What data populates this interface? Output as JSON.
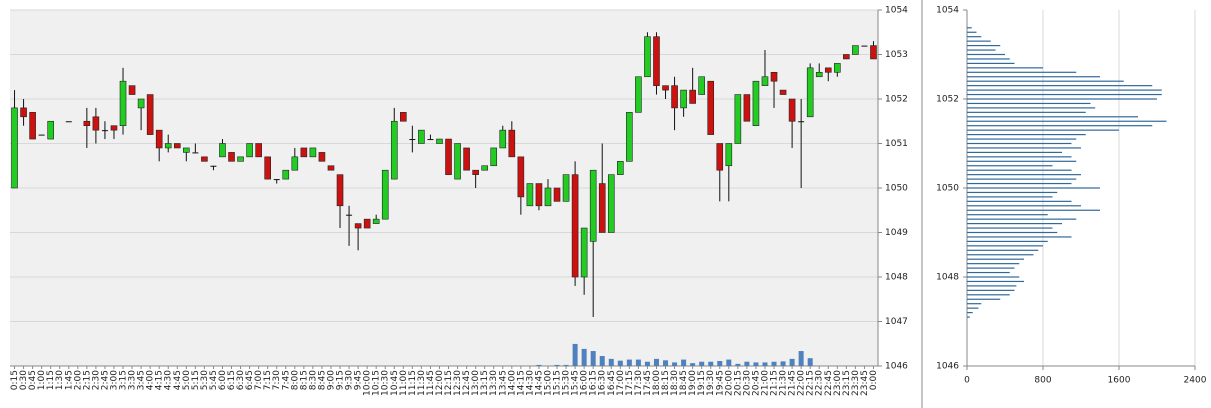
{
  "chart_data": [
    {
      "type": "candlestick",
      "categories": [
        "0:15",
        "0:30",
        "0:45",
        "1:00",
        "1:15",
        "1:30",
        "1:45",
        "2:00",
        "2:15",
        "2:30",
        "2:45",
        "3:00",
        "3:15",
        "3:30",
        "3:45",
        "4:00",
        "4:15",
        "4:30",
        "4:45",
        "5:00",
        "5:15",
        "5:30",
        "5:45",
        "6:00",
        "6:15",
        "6:30",
        "6:45",
        "7:00",
        "7:15",
        "7:30",
        "7:45",
        "8:00",
        "8:15",
        "8:30",
        "8:45",
        "9:00",
        "9:15",
        "9:30",
        "9:45",
        "10:00",
        "10:15",
        "10:30",
        "10:45",
        "11:00",
        "11:15",
        "11:30",
        "11:45",
        "12:00",
        "12:15",
        "12:30",
        "12:45",
        "13:00",
        "13:15",
        "13:30",
        "13:45",
        "14:00",
        "14:15",
        "14:30",
        "14:45",
        "15:00",
        "15:15",
        "15:30",
        "15:45",
        "16:00",
        "16:15",
        "16:30",
        "16:45",
        "17:00",
        "17:15",
        "17:30",
        "17:45",
        "18:00",
        "18:15",
        "18:30",
        "18:45",
        "19:00",
        "19:15",
        "19:30",
        "19:45",
        "20:00",
        "20:15",
        "20:30",
        "20:45",
        "21:00",
        "21:15",
        "21:30",
        "21:45",
        "22:00",
        "22:15",
        "22:30",
        "22:45",
        "23:00",
        "23:15",
        "23:30",
        "23:45",
        "0:00"
      ],
      "open": [
        1050,
        1051.8,
        1051.7,
        1051.2,
        1051.1,
        null,
        1051.5,
        null,
        1051.5,
        1051.6,
        1051.3,
        1051.4,
        1051.4,
        1052.3,
        1051.8,
        1052.1,
        1051.3,
        1050.9,
        1051,
        1050.8,
        1050.8,
        1050.7,
        1050.5,
        1050.7,
        1050.8,
        1050.6,
        1050.7,
        1051,
        1050.7,
        1050.2,
        1050.2,
        1050.4,
        1050.9,
        1050.7,
        1050.8,
        1050.5,
        1050.3,
        1049.4,
        1049.2,
        1049.3,
        1049.2,
        1049.3,
        1050.2,
        1051.7,
        1051.1,
        1051,
        1051.1,
        1051,
        1051.1,
        1050.2,
        1050.9,
        1050.4,
        1050.4,
        1050.5,
        1050.9,
        1051.3,
        1050.7,
        1049.6,
        1050.1,
        1049.6,
        1050,
        1049.7,
        1050.3,
        1048,
        1048.8,
        1050.1,
        1049,
        1050.3,
        1050.6,
        1051.7,
        1052.5,
        1053.4,
        1052.3,
        1052.3,
        1051.8,
        1052.2,
        1052.1,
        1052.4,
        1051,
        1050.5,
        1051,
        1052.1,
        1051.4,
        1052.3,
        1052.6,
        1052.2,
        1052,
        1051.5,
        1051.6,
        1052.5,
        1052.7,
        1052.6,
        1053,
        1053,
        1053.2,
        1053.2
      ],
      "high": [
        1052.2,
        1052,
        1051.7,
        1051.2,
        1051.5,
        null,
        1051.5,
        null,
        1051.8,
        1051.8,
        1051.5,
        1051.4,
        1052.7,
        1052.3,
        1052,
        1052.1,
        1051.3,
        1051.2,
        1051,
        1050.9,
        1051,
        1050.7,
        1050.5,
        1051.1,
        1050.8,
        1050.7,
        1051,
        1051,
        1050.7,
        1050.2,
        1050.4,
        1050.9,
        1050.9,
        1050.9,
        1050.8,
        1050.5,
        1050.3,
        1049.6,
        1049.2,
        1049.3,
        1049.4,
        1050.4,
        1051.8,
        1051.7,
        1051.4,
        1051.3,
        1051.2,
        1051.1,
        1051.1,
        1051,
        1050.9,
        1050.4,
        1050.5,
        1050.9,
        1051.4,
        1051.5,
        1050.7,
        1050.1,
        1050.1,
        1050.2,
        1050,
        1050.3,
        1050.6,
        1049.1,
        1050.4,
        1051,
        1050.3,
        1050.6,
        1051.7,
        1052.5,
        1053.5,
        1053.5,
        1052.3,
        1052.5,
        1052.2,
        1052.7,
        1052.5,
        1052.4,
        1051,
        1051,
        1052.1,
        1052.1,
        1052.4,
        1053.1,
        1052.6,
        1052.2,
        1052,
        1052,
        1052.8,
        1052.8,
        1052.7,
        1052.8,
        1053,
        1053.2,
        1053.2,
        1053.3
      ],
      "low": [
        1050,
        1051.4,
        1051.1,
        1051.2,
        1051.1,
        null,
        1051.5,
        null,
        1050.9,
        1051,
        1051.1,
        1051.1,
        1051.2,
        1052.1,
        1051.3,
        1051.2,
        1050.6,
        1050.8,
        1050.9,
        1050.6,
        1050.8,
        1050.6,
        1050.4,
        1050.7,
        1050.6,
        1050.6,
        1050.7,
        1050.7,
        1050.2,
        1050.1,
        1050.2,
        1050.4,
        1050.7,
        1050.7,
        1050.6,
        1050.4,
        1049.1,
        1048.7,
        1048.6,
        1049.1,
        1049.2,
        1049.3,
        1050.2,
        1051.5,
        1050.8,
        1051,
        1051.1,
        1051,
        1050.3,
        1050.2,
        1050.4,
        1050,
        1050.4,
        1050.5,
        1050.9,
        1050.7,
        1049.4,
        1049.6,
        1049.5,
        1049.6,
        1049.7,
        1049.7,
        1047.8,
        1047.6,
        1047.1,
        1049,
        1049,
        1050.3,
        1050.6,
        1051.7,
        1052.5,
        1052.1,
        1052,
        1051.3,
        1051.6,
        1051.9,
        1052.1,
        1051.2,
        1049.7,
        1049.7,
        1051,
        1051.5,
        1051.4,
        1052.3,
        1051.8,
        1052.1,
        1050.9,
        1050,
        1051.6,
        1052.5,
        1052.4,
        1052.5,
        1052.9,
        1053,
        1053.2,
        1052.9
      ],
      "close": [
        1051.8,
        1051.6,
        1051.1,
        1051.2,
        1051.5,
        null,
        1051.5,
        null,
        1051.4,
        1051.3,
        1051.3,
        1051.3,
        1052.4,
        1052.1,
        1052,
        1051.2,
        1050.9,
        1051,
        1050.9,
        1050.9,
        1050.8,
        1050.6,
        1050.5,
        1051,
        1050.6,
        1050.7,
        1051,
        1050.7,
        1050.2,
        1050.2,
        1050.4,
        1050.7,
        1050.7,
        1050.9,
        1050.6,
        1050.4,
        1049.6,
        1049.4,
        1049.1,
        1049.1,
        1049.3,
        1050.4,
        1051.5,
        1051.5,
        1051.1,
        1051.3,
        1051.1,
        1051.1,
        1050.3,
        1051,
        1050.4,
        1050.3,
        1050.5,
        1050.9,
        1051.3,
        1050.7,
        1049.8,
        1050.1,
        1049.6,
        1050,
        1049.7,
        1050.3,
        1048,
        1049.1,
        1050.4,
        1049,
        1050.3,
        1050.6,
        1051.7,
        1052.5,
        1053.4,
        1052.3,
        1052.2,
        1051.8,
        1052.2,
        1051.9,
        1052.5,
        1051.2,
        1050.4,
        1051,
        1052.1,
        1051.5,
        1052.4,
        1052.5,
        1052.4,
        1052.1,
        1051.5,
        1051.5,
        1052.7,
        1052.6,
        1052.6,
        1052.8,
        1052.9,
        1053.2,
        1053.2,
        1052.9
      ],
      "volume": [
        0,
        0,
        0,
        0,
        0,
        0,
        0,
        0,
        0,
        0,
        0,
        0,
        0,
        0,
        0,
        0,
        0,
        0,
        0,
        0,
        0,
        0,
        0,
        0,
        0,
        0,
        0,
        0,
        0,
        0,
        0,
        0,
        0,
        0,
        0,
        0,
        0,
        0,
        0,
        0,
        0,
        0,
        0,
        0,
        0,
        0,
        0,
        0,
        0,
        0,
        0,
        0,
        0,
        0,
        0,
        0,
        0,
        0,
        0.3,
        0,
        0.3,
        0.3,
        6.2,
        4.8,
        4.2,
        2.8,
        2,
        1.5,
        1.8,
        1.8,
        1.2,
        2,
        1.6,
        1,
        1.8,
        0.8,
        1.2,
        1.2,
        1.4,
        1.8,
        0.6,
        1.2,
        1,
        1,
        1.2,
        1.3,
        2,
        4.2,
        2.2,
        0,
        0,
        0,
        0,
        0,
        0,
        0
      ],
      "ylim": [
        1046,
        1054
      ],
      "yticks": [
        1046,
        1047,
        1048,
        1049,
        1050,
        1051,
        1052,
        1053,
        1054
      ],
      "y2lim": [
        0,
        100
      ],
      "up_color": "#22cc22",
      "down_color": "#cc1111",
      "volume_color": "#4f81bd",
      "grid": true
    },
    {
      "type": "barh",
      "y": [
        1047.1,
        1047.2,
        1047.3,
        1047.4,
        1047.5,
        1047.6,
        1047.7,
        1047.8,
        1047.9,
        1048,
        1048.1,
        1048.2,
        1048.3,
        1048.4,
        1048.5,
        1048.6,
        1048.7,
        1048.8,
        1048.9,
        1049,
        1049.1,
        1049.2,
        1049.3,
        1049.4,
        1049.5,
        1049.6,
        1049.7,
        1049.8,
        1049.9,
        1050,
        1050.1,
        1050.2,
        1050.3,
        1050.4,
        1050.5,
        1050.6,
        1050.7,
        1050.8,
        1050.9,
        1051,
        1051.1,
        1051.2,
        1051.3,
        1051.4,
        1051.5,
        1051.6,
        1051.7,
        1051.8,
        1051.9,
        1052,
        1052.1,
        1052.2,
        1052.3,
        1052.4,
        1052.5,
        1052.6,
        1052.7,
        1052.8,
        1052.9,
        1053,
        1053.1,
        1053.2,
        1053.3,
        1053.4,
        1053.5,
        1053.6
      ],
      "values": [
        30,
        60,
        120,
        150,
        350,
        450,
        500,
        520,
        600,
        550,
        450,
        500,
        550,
        600,
        700,
        750,
        800,
        850,
        1100,
        950,
        900,
        1000,
        1150,
        850,
        1400,
        1200,
        1100,
        900,
        950,
        1400,
        1100,
        1150,
        1200,
        1100,
        900,
        1150,
        1100,
        1000,
        1200,
        1100,
        1150,
        1250,
        1600,
        1950,
        2100,
        1800,
        1250,
        1350,
        1300,
        2000,
        2050,
        2050,
        1950,
        1650,
        1400,
        1150,
        800,
        500,
        450,
        400,
        300,
        350,
        250,
        150,
        100,
        50
      ],
      "xlim": [
        0,
        2400
      ],
      "xticks": [
        0,
        800,
        1600,
        2400
      ],
      "ylim": [
        1046,
        1054
      ],
      "yticks": [
        1046,
        1048,
        1050,
        1052,
        1054
      ],
      "color": "#31699b",
      "grid": true
    }
  ]
}
